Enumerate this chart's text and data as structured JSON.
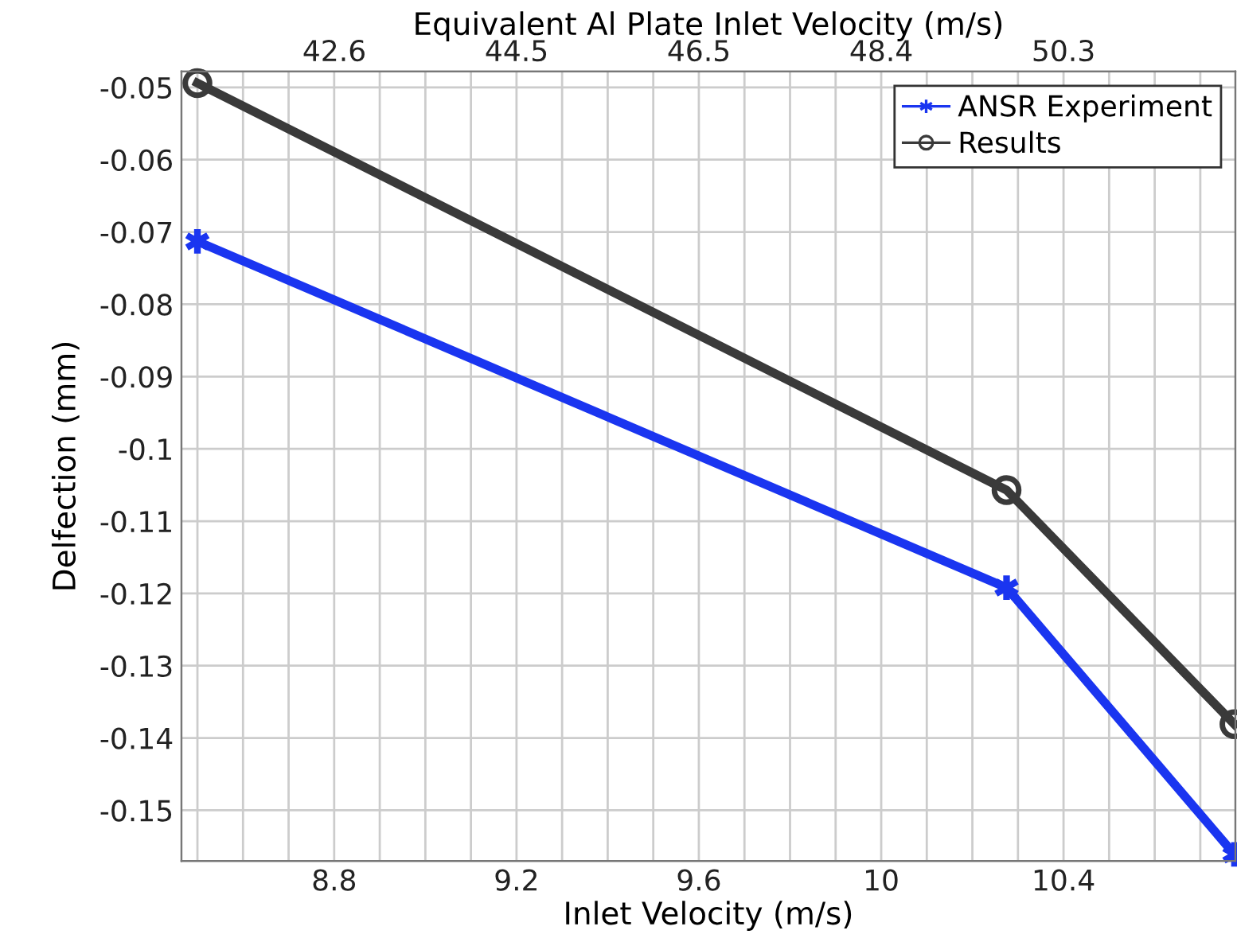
{
  "chart_data": {
    "type": "line",
    "xlabel": "Inlet Velocity (m/s)",
    "ylabel": "Delfection (mm)",
    "x2label": "Equivalent Al Plate Inlet Velocity (m/s)",
    "series": [
      {
        "name": "ANSR Experiment",
        "color": "#1a35f0",
        "marker": "cross",
        "x": [
          8.5,
          10.275,
          10.775
        ],
        "values": [
          -0.0713,
          -0.1192,
          -0.1561
        ]
      },
      {
        "name": "Results",
        "color": "#3a3a3a",
        "marker": "circle",
        "x": [
          8.5,
          10.275,
          10.775
        ],
        "values": [
          -0.0494,
          -0.1057,
          -0.1381
        ]
      }
    ],
    "xlim": [
      8.465,
      10.777
    ],
    "ylim": [
      -0.157,
      -0.0478
    ],
    "xticks": [
      {
        "value": 8.5,
        "label": null
      },
      {
        "value": 8.6,
        "label": null
      },
      {
        "value": 8.7,
        "label": null
      },
      8.8,
      {
        "value": 8.9,
        "label": null
      },
      {
        "value": 9.0,
        "label": null
      },
      {
        "value": 9.1,
        "label": null
      },
      9.2,
      {
        "value": 9.3,
        "label": null
      },
      {
        "value": 9.4,
        "label": null
      },
      {
        "value": 9.5,
        "label": null
      },
      9.6,
      {
        "value": 9.7,
        "label": null
      },
      {
        "value": 9.8,
        "label": null
      },
      {
        "value": 9.9,
        "label": null
      },
      10,
      {
        "value": 10.1,
        "label": null
      },
      {
        "value": 10.2,
        "label": null
      },
      {
        "value": 10.3,
        "label": null
      },
      10.4,
      {
        "value": 10.5,
        "label": null
      },
      {
        "value": 10.6,
        "label": null
      },
      {
        "value": 10.7,
        "label": null
      }
    ],
    "yticks": [
      -0.15,
      -0.14,
      -0.13,
      -0.12,
      -0.11,
      -0.1,
      -0.09,
      -0.08,
      -0.07,
      -0.06,
      -0.05
    ],
    "x2lim": [
      41.01,
      52.11
    ],
    "x2ticks": [
      {
        "value": 42.62,
        "label": "42.6"
      },
      {
        "value": 44.54,
        "label": "44.5"
      },
      {
        "value": 46.46,
        "label": "46.5"
      },
      {
        "value": 48.38,
        "label": "48.4"
      },
      {
        "value": 50.3,
        "label": "50.3"
      }
    ],
    "grid": true,
    "legend": "top right",
    "line_style": "solid"
  }
}
